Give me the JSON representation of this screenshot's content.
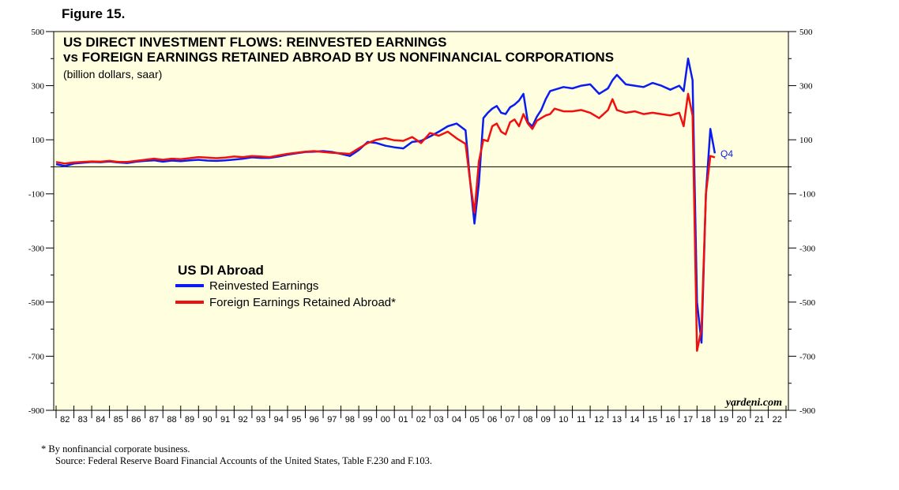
{
  "figure_label": "Figure 15.",
  "footnotes": {
    "note": "*  By nonfinancial corporate business.",
    "source": "Source: Federal Reserve Board Financial Accounts of the United States, Table F.230 and F.103."
  },
  "colors": {
    "background": "#ffffe0",
    "series_blue": "#0a1cf0",
    "series_red": "#f01010"
  },
  "chart_data": {
    "type": "line",
    "title_line1": "US DIRECT INVESTMENT FLOWS: REINVESTED EARNINGS",
    "title_line2": "vs FOREIGN EARNINGS RETAINED ABROAD BY US NONFINANCIAL CORPORATIONS",
    "subtitle": "(billion dollars, saar)",
    "ylim": [
      -900,
      500
    ],
    "yticks": [
      500,
      300,
      100,
      -100,
      -300,
      -500,
      -700,
      -900
    ],
    "xlim": [
      1982,
      2023
    ],
    "year_labels": [
      "82",
      "83",
      "84",
      "85",
      "86",
      "87",
      "88",
      "89",
      "90",
      "91",
      "92",
      "93",
      "94",
      "95",
      "96",
      "97",
      "98",
      "99",
      "00",
      "01",
      "02",
      "03",
      "04",
      "05",
      "06",
      "07",
      "08",
      "09",
      "10",
      "11",
      "12",
      "13",
      "14",
      "15",
      "16",
      "17",
      "18",
      "19",
      "20",
      "21",
      "22"
    ],
    "zero_line": 0,
    "legend": {
      "title": "US DI Abroad",
      "placement": "center-left"
    },
    "brand": "yardeni.com",
    "end_annotation": "Q4",
    "series": [
      {
        "name": "Reinvested Earnings",
        "color": "#0a1cf0",
        "x": [
          1982,
          1982.5,
          1983,
          1983.5,
          1984,
          1984.5,
          1985,
          1985.5,
          1986,
          1986.5,
          1987,
          1987.5,
          1988,
          1988.5,
          1989,
          1989.5,
          1990,
          1990.5,
          1991,
          1991.5,
          1992,
          1992.5,
          1993,
          1993.5,
          1994,
          1994.5,
          1995,
          1995.5,
          1996,
          1996.5,
          1997,
          1997.5,
          1998,
          1998.5,
          1999,
          1999.5,
          2000,
          2000.5,
          2001,
          2001.5,
          2002,
          2002.5,
          2003,
          2003.5,
          2004,
          2004.5,
          2005,
          2005.25,
          2005.5,
          2005.75,
          2006,
          2006.25,
          2006.5,
          2006.75,
          2007,
          2007.25,
          2007.5,
          2007.75,
          2008,
          2008.25,
          2008.5,
          2008.75,
          2009,
          2009.25,
          2009.5,
          2009.75,
          2010,
          2010.5,
          2011,
          2011.5,
          2012,
          2012.5,
          2013,
          2013.25,
          2013.5,
          2014,
          2014.5,
          2015,
          2015.5,
          2016,
          2016.5,
          2017,
          2017.25,
          2017.5,
          2017.75,
          2018,
          2018.25,
          2018.5,
          2018.75,
          2019
        ],
        "values": [
          10,
          3,
          12,
          15,
          18,
          17,
          20,
          16,
          14,
          19,
          22,
          24,
          19,
          23,
          21,
          24,
          26,
          23,
          22,
          24,
          27,
          30,
          35,
          33,
          33,
          38,
          45,
          50,
          55,
          56,
          58,
          55,
          48,
          40,
          62,
          92,
          88,
          78,
          72,
          68,
          92,
          96,
          112,
          130,
          150,
          160,
          135,
          -50,
          -210,
          -60,
          180,
          200,
          215,
          225,
          200,
          195,
          220,
          230,
          245,
          270,
          165,
          150,
          185,
          210,
          250,
          280,
          285,
          295,
          290,
          300,
          305,
          270,
          290,
          320,
          340,
          305,
          300,
          295,
          310,
          300,
          285,
          300,
          280,
          400,
          320,
          -500,
          -650,
          -100,
          140,
          50
        ]
      },
      {
        "name": "Foreign Earnings Retained Abroad*",
        "color": "#f01010",
        "x": [
          1982,
          1982.5,
          1983,
          1983.5,
          1984,
          1984.5,
          1985,
          1985.5,
          1986,
          1986.5,
          1987,
          1987.5,
          1988,
          1988.5,
          1989,
          1989.5,
          1990,
          1990.5,
          1991,
          1991.5,
          1992,
          1992.5,
          1993,
          1993.5,
          1994,
          1994.5,
          1995,
          1995.5,
          1996,
          1996.5,
          1997,
          1997.5,
          1998,
          1998.5,
          1999,
          1999.5,
          2000,
          2000.5,
          2001,
          2001.5,
          2002,
          2002.5,
          2003,
          2003.5,
          2004,
          2004.5,
          2005,
          2005.25,
          2005.5,
          2005.75,
          2006,
          2006.25,
          2006.5,
          2006.75,
          2007,
          2007.25,
          2007.5,
          2007.75,
          2008,
          2008.25,
          2008.5,
          2008.75,
          2009,
          2009.25,
          2009.5,
          2009.75,
          2010,
          2010.5,
          2011,
          2011.5,
          2012,
          2012.5,
          2013,
          2013.25,
          2013.5,
          2014,
          2014.5,
          2015,
          2015.5,
          2016,
          2016.5,
          2017,
          2017.25,
          2017.5,
          2017.75,
          2018,
          2018.25,
          2018.5,
          2018.75,
          2019
        ],
        "values": [
          18,
          12,
          16,
          18,
          20,
          19,
          22,
          18,
          18,
          22,
          26,
          30,
          26,
          30,
          28,
          32,
          36,
          34,
          32,
          34,
          38,
          36,
          40,
          38,
          36,
          42,
          48,
          52,
          56,
          58,
          55,
          52,
          50,
          48,
          68,
          88,
          100,
          106,
          98,
          96,
          110,
          88,
          125,
          115,
          130,
          105,
          85,
          -50,
          -170,
          20,
          100,
          95,
          150,
          160,
          130,
          120,
          165,
          175,
          150,
          195,
          160,
          140,
          170,
          180,
          190,
          195,
          215,
          205,
          205,
          210,
          200,
          180,
          210,
          250,
          210,
          200,
          205,
          195,
          200,
          195,
          190,
          200,
          150,
          270,
          190,
          -680,
          -600,
          -100,
          40,
          35
        ]
      }
    ]
  }
}
